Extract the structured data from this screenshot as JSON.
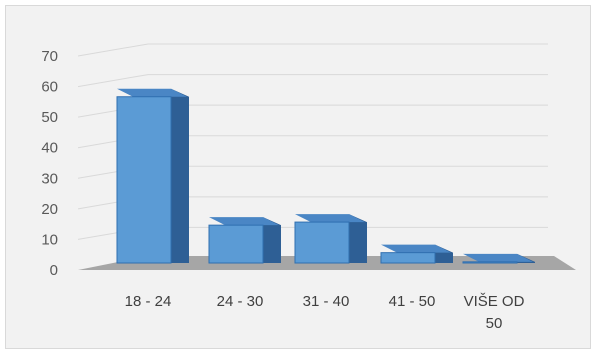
{
  "chart_data": {
    "type": "bar",
    "style": "3d-column",
    "categories": [
      "18 - 24",
      "24 - 30",
      "31 - 40",
      "41 - 50",
      "VIŠE OD 50"
    ],
    "category_label_lines": [
      [
        "18 - 24"
      ],
      [
        "24 - 30"
      ],
      [
        "31 - 40"
      ],
      [
        "41 - 50"
      ],
      [
        "VIŠE OD",
        "50"
      ]
    ],
    "values": [
      57,
      15,
      16,
      6,
      3
    ],
    "title": "",
    "xlabel": "",
    "ylabel": "",
    "ylim": [
      0,
      70
    ],
    "yticks": [
      0,
      10,
      20,
      30,
      40,
      50,
      60,
      70
    ],
    "grid": true,
    "legend": "none",
    "colors": {
      "bar_front": "#5b9bd5",
      "bar_top": "#4a86c5",
      "bar_side": "#2e5f95",
      "bar_edge": "#2f6fb0",
      "floor": "#a6a6a6",
      "grid": "#d9d9d9",
      "background": "#f2f2f2"
    }
  }
}
